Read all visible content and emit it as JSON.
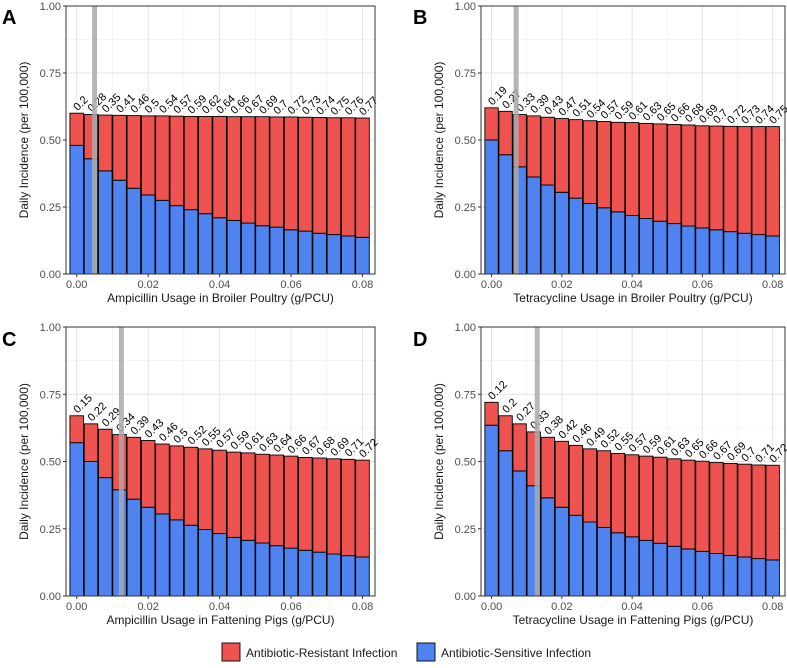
{
  "figure": {
    "colors": {
      "resistant": "#ef5350",
      "sensitive": "#4f84f0",
      "marker": "#aaaaaa",
      "bar_outline": "#000000"
    },
    "legend": {
      "resistant_label": "Antibiotic-Resistant Infection",
      "sensitive_label": "Antibiotic-Sensitive Infection"
    }
  },
  "chart_data": [
    {
      "type": "bar",
      "stacked": true,
      "panel": "A",
      "xlabel": "Ampicillin Usage in Broiler Poultry (g/PCU)",
      "ylabel": "Daily Incidence (per 100,000)",
      "xlim": [
        -0.003,
        0.0835
      ],
      "ylim": [
        0,
        1
      ],
      "xticks": [
        "0.00",
        "0.02",
        "0.04",
        "0.06",
        "0.08"
      ],
      "yticks": [
        "0.00",
        "0.25",
        "0.50",
        "0.75",
        "1.00"
      ],
      "marker_x": 0.005,
      "x": [
        0,
        0.004,
        0.008,
        0.012,
        0.016,
        0.02,
        0.024,
        0.028,
        0.032,
        0.036,
        0.04,
        0.044,
        0.048,
        0.052,
        0.056,
        0.06,
        0.064,
        0.068,
        0.072,
        0.076,
        0.08
      ],
      "series": [
        {
          "name": "Antibiotic-Sensitive Infection",
          "values": [
            0.48,
            0.43,
            0.385,
            0.35,
            0.32,
            0.295,
            0.275,
            0.255,
            0.24,
            0.225,
            0.21,
            0.2,
            0.19,
            0.18,
            0.175,
            0.165,
            0.16,
            0.152,
            0.147,
            0.142,
            0.137
          ]
        },
        {
          "name": "Antibiotic-Resistant Infection",
          "values": [
            0.12,
            0.165,
            0.208,
            0.242,
            0.271,
            0.295,
            0.315,
            0.334,
            0.348,
            0.363,
            0.378,
            0.387,
            0.397,
            0.407,
            0.411,
            0.421,
            0.425,
            0.432,
            0.436,
            0.441,
            0.445
          ]
        }
      ],
      "labels": [
        "0.2",
        "0.28",
        "0.35",
        "0.41",
        "0.46",
        "0.5",
        "0.54",
        "0.57",
        "0.59",
        "0.62",
        "0.64",
        "0.66",
        "0.67",
        "0.69",
        "0.7",
        "0.72",
        "0.73",
        "0.74",
        "0.75",
        "0.76",
        "0.77"
      ]
    },
    {
      "type": "bar",
      "stacked": true,
      "panel": "B",
      "xlabel": "Tetracycline Usage in Broiler Poultry (g/PCU)",
      "ylabel": "Daily Incidence (per 100,000)",
      "xlim": [
        -0.003,
        0.0835
      ],
      "ylim": [
        0,
        1
      ],
      "xticks": [
        "0.00",
        "0.02",
        "0.04",
        "0.06",
        "0.08"
      ],
      "yticks": [
        "0.00",
        "0.25",
        "0.50",
        "0.75",
        "1.00"
      ],
      "marker_x": 0.007,
      "x": [
        0,
        0.004,
        0.008,
        0.012,
        0.016,
        0.02,
        0.024,
        0.028,
        0.032,
        0.036,
        0.04,
        0.044,
        0.048,
        0.052,
        0.056,
        0.06,
        0.064,
        0.068,
        0.072,
        0.076,
        0.08
      ],
      "series": [
        {
          "name": "Antibiotic-Sensitive Infection",
          "values": [
            0.5,
            0.445,
            0.4,
            0.362,
            0.332,
            0.305,
            0.283,
            0.263,
            0.247,
            0.232,
            0.218,
            0.207,
            0.197,
            0.188,
            0.179,
            0.172,
            0.165,
            0.158,
            0.152,
            0.147,
            0.142
          ]
        },
        {
          "name": "Antibiotic-Resistant Infection",
          "values": [
            0.12,
            0.162,
            0.195,
            0.228,
            0.253,
            0.275,
            0.293,
            0.309,
            0.322,
            0.334,
            0.347,
            0.355,
            0.363,
            0.37,
            0.377,
            0.381,
            0.387,
            0.393,
            0.398,
            0.403,
            0.408
          ]
        }
      ],
      "labels": [
        "0.19",
        "0.27",
        "0.33",
        "0.39",
        "0.43",
        "0.47",
        "0.51",
        "0.54",
        "0.57",
        "0.59",
        "0.61",
        "0.63",
        "0.65",
        "0.66",
        "0.68",
        "0.69",
        "0.7",
        "0.72",
        "0.73",
        "0.74",
        "0.75"
      ]
    },
    {
      "type": "bar",
      "stacked": true,
      "panel": "C",
      "xlabel": "Ampicillin Usage in Fattening Pigs (g/PCU)",
      "ylabel": "Daily Incidence (per 100,000)",
      "xlim": [
        -0.003,
        0.0835
      ],
      "ylim": [
        0,
        1
      ],
      "xticks": [
        "0.00",
        "0.02",
        "0.04",
        "0.06",
        "0.08"
      ],
      "yticks": [
        "0.00",
        "0.25",
        "0.50",
        "0.75",
        "1.00"
      ],
      "marker_x": 0.0125,
      "x": [
        0,
        0.004,
        0.008,
        0.012,
        0.016,
        0.02,
        0.024,
        0.028,
        0.032,
        0.036,
        0.04,
        0.044,
        0.048,
        0.052,
        0.056,
        0.06,
        0.064,
        0.068,
        0.072,
        0.076,
        0.08
      ],
      "series": [
        {
          "name": "Antibiotic-Sensitive Infection",
          "values": [
            0.57,
            0.5,
            0.44,
            0.395,
            0.36,
            0.33,
            0.305,
            0.283,
            0.263,
            0.247,
            0.232,
            0.218,
            0.207,
            0.197,
            0.187,
            0.178,
            0.17,
            0.163,
            0.156,
            0.15,
            0.145
          ]
        },
        {
          "name": "Antibiotic-Resistant Infection",
          "values": [
            0.1,
            0.14,
            0.18,
            0.205,
            0.23,
            0.248,
            0.26,
            0.275,
            0.29,
            0.3,
            0.31,
            0.317,
            0.325,
            0.33,
            0.337,
            0.342,
            0.345,
            0.35,
            0.354,
            0.358,
            0.36
          ]
        }
      ],
      "labels": [
        "0.15",
        "0.22",
        "0.29",
        "0.34",
        "0.39",
        "0.43",
        "0.46",
        "0.5",
        "0.52",
        "0.55",
        "0.57",
        "0.59",
        "0.61",
        "0.63",
        "0.64",
        "0.66",
        "0.67",
        "0.68",
        "0.69",
        "0.71",
        "0.72"
      ]
    },
    {
      "type": "bar",
      "stacked": true,
      "panel": "D",
      "xlabel": "Tetracycline Usage in Fattening Pigs (g/PCU)",
      "ylabel": "Daily Incidence (per 100,000)",
      "xlim": [
        -0.003,
        0.0835
      ],
      "ylim": [
        0,
        1
      ],
      "xticks": [
        "0.00",
        "0.02",
        "0.04",
        "0.06",
        "0.08"
      ],
      "yticks": [
        "0.00",
        "0.25",
        "0.50",
        "0.75",
        "1.00"
      ],
      "marker_x": 0.013,
      "x": [
        0,
        0.004,
        0.008,
        0.012,
        0.016,
        0.02,
        0.024,
        0.028,
        0.032,
        0.036,
        0.04,
        0.044,
        0.048,
        0.052,
        0.056,
        0.06,
        0.064,
        0.068,
        0.072,
        0.076,
        0.08
      ],
      "series": [
        {
          "name": "Antibiotic-Sensitive Infection",
          "values": [
            0.635,
            0.54,
            0.465,
            0.41,
            0.365,
            0.33,
            0.3,
            0.275,
            0.255,
            0.235,
            0.22,
            0.207,
            0.196,
            0.185,
            0.175,
            0.166,
            0.158,
            0.151,
            0.145,
            0.139,
            0.134
          ]
        },
        {
          "name": "Antibiotic-Resistant Infection",
          "values": [
            0.085,
            0.13,
            0.175,
            0.2,
            0.225,
            0.245,
            0.26,
            0.272,
            0.285,
            0.295,
            0.305,
            0.313,
            0.32,
            0.325,
            0.33,
            0.335,
            0.338,
            0.342,
            0.345,
            0.348,
            0.352
          ]
        }
      ],
      "labels": [
        "0.12",
        "0.2",
        "0.27",
        "0.33",
        "0.38",
        "0.42",
        "0.46",
        "0.49",
        "0.52",
        "0.55",
        "0.57",
        "0.59",
        "0.61",
        "0.63",
        "0.65",
        "0.66",
        "0.67",
        "0.69",
        "0.7",
        "0.71",
        "0.72"
      ]
    }
  ]
}
